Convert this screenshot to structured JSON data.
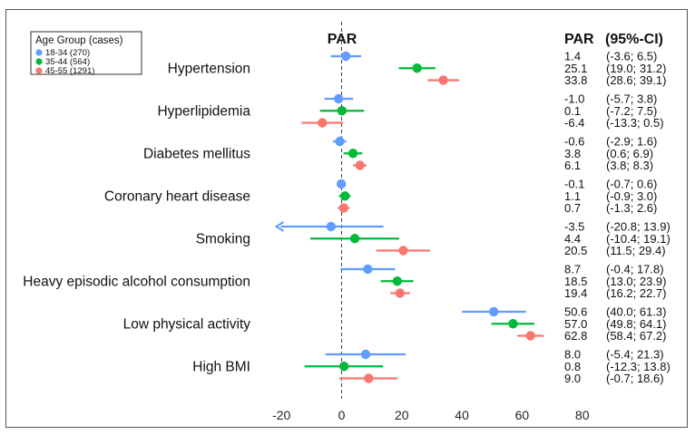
{
  "chart_data": {
    "type": "forest",
    "header_par": "PAR",
    "header_table_par": "PAR",
    "header_ci": "(95%-CI)",
    "xlim": [
      -22,
      82
    ],
    "x_ticks": [
      -20,
      0,
      20,
      40,
      60,
      80
    ],
    "x_tick_labels": [
      "-20",
      "0",
      "20",
      "40",
      "60",
      "80"
    ],
    "reference_line": 0,
    "legend": {
      "title": "Age Group (cases)",
      "items": [
        {
          "label": "18-34 (270)",
          "color": "#619CFF"
        },
        {
          "label": "35-44 (564)",
          "color": "#00BA38"
        },
        {
          "label": "45-55 (1291)",
          "color": "#F8766D"
        }
      ]
    },
    "categories": [
      {
        "name": "Hypertension",
        "rows": [
          {
            "est": 1.4,
            "lo": -3.6,
            "hi": 6.5,
            "par_text": "1.4",
            "ci_text": "(-3.6; 6.5)"
          },
          {
            "est": 25.1,
            "lo": 19.0,
            "hi": 31.2,
            "par_text": "25.1",
            "ci_text": "(19.0; 31.2)"
          },
          {
            "est": 33.8,
            "lo": 28.6,
            "hi": 39.1,
            "par_text": "33.8",
            "ci_text": "(28.6; 39.1)"
          }
        ]
      },
      {
        "name": "Hyperlipidemia",
        "rows": [
          {
            "est": -1.0,
            "lo": -5.7,
            "hi": 3.8,
            "par_text": "-1.0",
            "ci_text": "(-5.7; 3.8)"
          },
          {
            "est": 0.1,
            "lo": -7.2,
            "hi": 7.5,
            "par_text": "0.1",
            "ci_text": "(-7.2; 7.5)"
          },
          {
            "est": -6.4,
            "lo": -13.3,
            "hi": 0.5,
            "par_text": "-6.4",
            "ci_text": "(-13.3; 0.5)"
          }
        ]
      },
      {
        "name": "Diabetes mellitus",
        "rows": [
          {
            "est": -0.6,
            "lo": -2.9,
            "hi": 1.6,
            "par_text": "-0.6",
            "ci_text": "(-2.9; 1.6)"
          },
          {
            "est": 3.8,
            "lo": 0.6,
            "hi": 6.9,
            "par_text": "3.8",
            "ci_text": "(0.6; 6.9)"
          },
          {
            "est": 6.1,
            "lo": 3.8,
            "hi": 8.3,
            "par_text": "6.1",
            "ci_text": "(3.8; 8.3)"
          }
        ]
      },
      {
        "name": "Coronary heart disease",
        "rows": [
          {
            "est": -0.1,
            "lo": -0.7,
            "hi": 0.6,
            "par_text": "-0.1",
            "ci_text": "(-0.7; 0.6)"
          },
          {
            "est": 1.1,
            "lo": -0.9,
            "hi": 3.0,
            "par_text": "1.1",
            "ci_text": "(-0.9; 3.0)"
          },
          {
            "est": 0.7,
            "lo": -1.3,
            "hi": 2.6,
            "par_text": "0.7",
            "ci_text": "(-1.3; 2.6)"
          }
        ]
      },
      {
        "name": "Smoking",
        "rows": [
          {
            "est": -3.5,
            "lo": -20.8,
            "hi": 13.9,
            "par_text": "-3.5",
            "ci_text": "(-20.8; 13.9)",
            "arrow_left": true
          },
          {
            "est": 4.4,
            "lo": -10.4,
            "hi": 19.1,
            "par_text": "4.4",
            "ci_text": "(-10.4; 19.1)"
          },
          {
            "est": 20.5,
            "lo": 11.5,
            "hi": 29.4,
            "par_text": "20.5",
            "ci_text": "(11.5; 29.4)"
          }
        ]
      },
      {
        "name": "Heavy episodic alcohol consumption",
        "rows": [
          {
            "est": 8.7,
            "lo": -0.4,
            "hi": 17.8,
            "par_text": "8.7",
            "ci_text": "(-0.4; 17.8)"
          },
          {
            "est": 18.5,
            "lo": 13.0,
            "hi": 23.9,
            "par_text": "18.5",
            "ci_text": "(13.0; 23.9)"
          },
          {
            "est": 19.4,
            "lo": 16.2,
            "hi": 22.7,
            "par_text": "19.4",
            "ci_text": "(16.2; 22.7)"
          }
        ]
      },
      {
        "name": "Low physical activity",
        "rows": [
          {
            "est": 50.6,
            "lo": 40.0,
            "hi": 61.3,
            "par_text": "50.6",
            "ci_text": "(40.0; 61.3)"
          },
          {
            "est": 57.0,
            "lo": 49.8,
            "hi": 64.1,
            "par_text": "57.0",
            "ci_text": "(49.8; 64.1)"
          },
          {
            "est": 62.8,
            "lo": 58.4,
            "hi": 67.2,
            "par_text": "62.8",
            "ci_text": "(58.4; 67.2)"
          }
        ]
      },
      {
        "name": "High BMI",
        "rows": [
          {
            "est": 8.0,
            "lo": -5.4,
            "hi": 21.3,
            "par_text": "8.0",
            "ci_text": "(-5.4; 21.3)"
          },
          {
            "est": 0.8,
            "lo": -12.3,
            "hi": 13.8,
            "par_text": "0.8",
            "ci_text": "(-12.3; 13.8)"
          },
          {
            "est": 9.0,
            "lo": -0.7,
            "hi": 18.6,
            "par_text": "9.0",
            "ci_text": "(-0.7; 18.6)"
          }
        ]
      }
    ]
  }
}
